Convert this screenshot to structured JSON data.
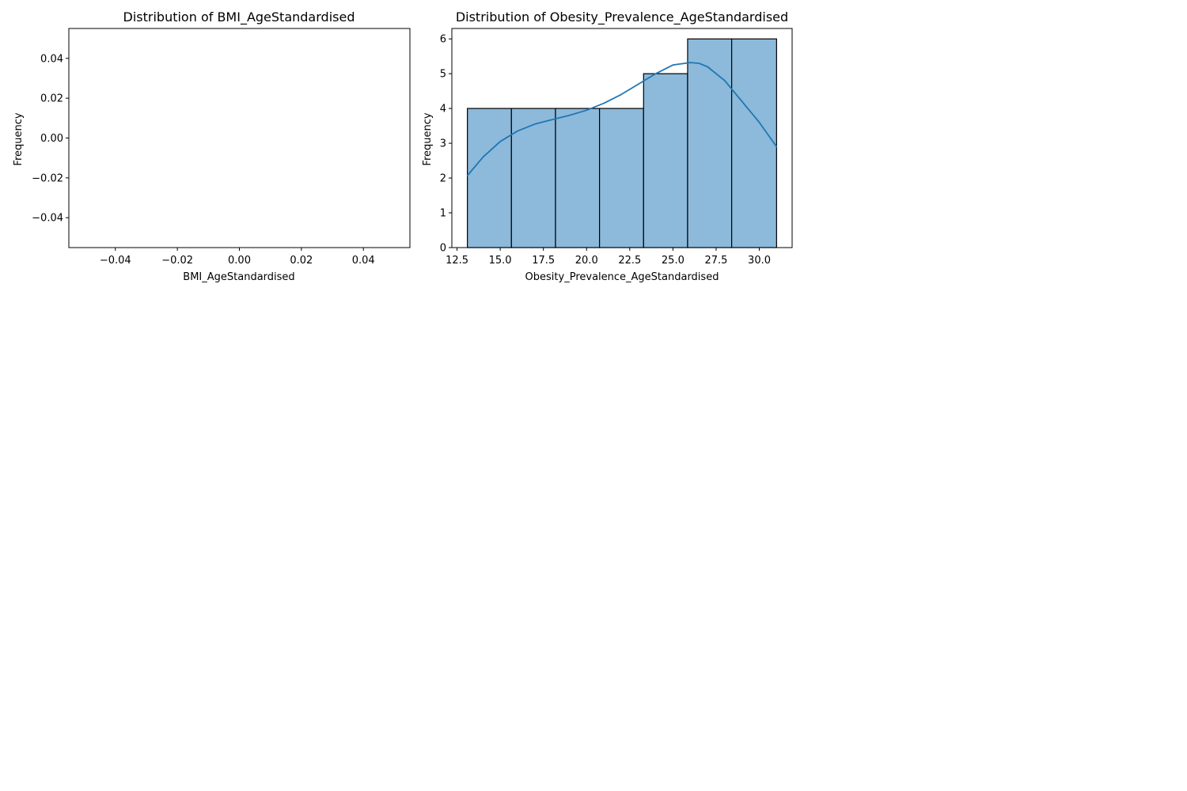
{
  "chart_data": [
    {
      "type": "bar",
      "title": "Distribution of BMI_AgeStandardised",
      "xlabel": "BMI_AgeStandardised",
      "ylabel": "Frequency",
      "xlim": [
        -0.055,
        0.055
      ],
      "ylim": [
        -0.055,
        0.055
      ],
      "xticks": [
        -0.04,
        -0.02,
        0.0,
        0.02,
        0.04
      ],
      "xtick_labels": [
        "−0.04",
        "−0.02",
        "0.00",
        "0.02",
        "0.04"
      ],
      "yticks": [
        -0.04,
        -0.02,
        0.0,
        0.02,
        0.04
      ],
      "ytick_labels": [
        "−0.04",
        "−0.02",
        "0.00",
        "0.02",
        "0.04"
      ],
      "bins": [],
      "grid": false
    },
    {
      "type": "bar",
      "title": "Distribution of Obesity_Prevalence_AgeStandardised",
      "xlabel": "Obesity_Prevalence_AgeStandardised",
      "ylabel": "Frequency",
      "xlim": [
        12.2,
        31.9
      ],
      "ylim": [
        0,
        6.3
      ],
      "xticks": [
        12.5,
        15.0,
        17.5,
        20.0,
        22.5,
        25.0,
        27.5,
        30.0
      ],
      "xtick_labels": [
        "12.5",
        "15.0",
        "17.5",
        "20.0",
        "22.5",
        "25.0",
        "27.5",
        "30.0"
      ],
      "yticks": [
        0,
        1,
        2,
        3,
        4,
        5,
        6
      ],
      "ytick_labels": [
        "0",
        "1",
        "2",
        "3",
        "4",
        "5",
        "6"
      ],
      "bins": [
        {
          "x0": 13.1,
          "x1": 15.65,
          "count": 4
        },
        {
          "x0": 15.65,
          "x1": 18.2,
          "count": 4
        },
        {
          "x0": 18.2,
          "x1": 20.75,
          "count": 4
        },
        {
          "x0": 20.75,
          "x1": 23.3,
          "count": 4
        },
        {
          "x0": 23.3,
          "x1": 25.85,
          "count": 5
        },
        {
          "x0": 25.85,
          "x1": 28.4,
          "count": 6
        },
        {
          "x0": 28.4,
          "x1": 31.0,
          "count": 6
        }
      ],
      "kde": {
        "x": [
          13.1,
          14.0,
          15.0,
          16.0,
          17.0,
          18.0,
          19.0,
          20.0,
          21.0,
          22.0,
          23.0,
          24.0,
          25.0,
          26.0,
          26.5,
          27.0,
          28.0,
          29.0,
          30.0,
          31.0
        ],
        "y": [
          2.07,
          2.6,
          3.05,
          3.35,
          3.55,
          3.68,
          3.8,
          3.95,
          4.15,
          4.4,
          4.7,
          5.0,
          5.25,
          5.32,
          5.3,
          5.2,
          4.8,
          4.2,
          3.6,
          2.9
        ]
      },
      "colors": {
        "bar_fill": "#8db9da",
        "bar_edge": "#000000",
        "kde_line": "#1f77b4"
      },
      "grid": false
    }
  ]
}
